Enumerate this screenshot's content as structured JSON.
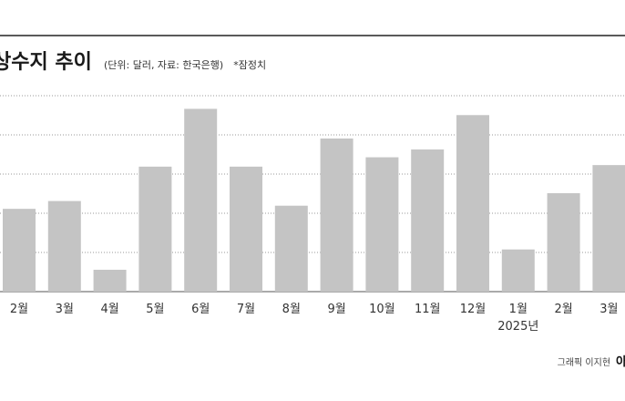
{
  "chart_data": {
    "type": "bar",
    "title": "상수지 추이",
    "subtitle": "(단위: 달러, 자료: 한국은행)",
    "note": "*잠정치",
    "categories": [
      "2월",
      "3월",
      "4월",
      "5월",
      "6월",
      "7월",
      "8월",
      "9월",
      "10월",
      "11월",
      "12월",
      "1월",
      "2월",
      "3월"
    ],
    "year_marker": {
      "index": 11,
      "label": "2025년"
    },
    "values": [
      53,
      58,
      14,
      80,
      117,
      80,
      55,
      98,
      86,
      91,
      113,
      27,
      63,
      81
    ],
    "ylim": [
      0,
      140
    ],
    "grid": true,
    "bar_color": "#c4c4c4",
    "legend": "none"
  },
  "footer": {
    "credit": "그래픽 이지현",
    "brand": "아"
  }
}
